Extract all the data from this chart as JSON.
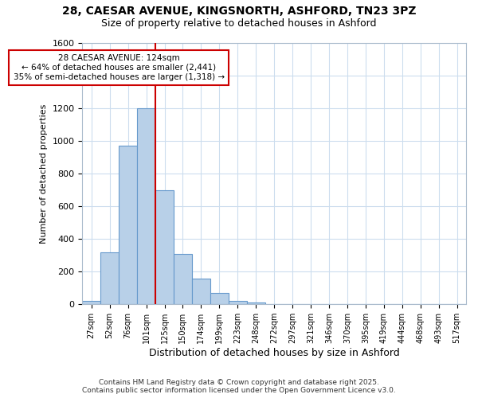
{
  "title_line1": "28, CAESAR AVENUE, KINGSNORTH, ASHFORD, TN23 3PZ",
  "title_line2": "Size of property relative to detached houses in Ashford",
  "xlabel": "Distribution of detached houses by size in Ashford",
  "ylabel": "Number of detached properties",
  "bar_labels": [
    "27sqm",
    "52sqm",
    "76sqm",
    "101sqm",
    "125sqm",
    "150sqm",
    "174sqm",
    "199sqm",
    "223sqm",
    "248sqm",
    "272sqm",
    "297sqm",
    "321sqm",
    "346sqm",
    "370sqm",
    "395sqm",
    "419sqm",
    "444sqm",
    "468sqm",
    "493sqm",
    "517sqm"
  ],
  "bar_values": [
    20,
    320,
    970,
    1200,
    700,
    310,
    155,
    70,
    20,
    10,
    2,
    0,
    0,
    0,
    0,
    0,
    0,
    0,
    0,
    0,
    0
  ],
  "bar_color": "#b8d0e8",
  "bar_edgecolor": "#6699cc",
  "annotation_text": "28 CAESAR AVENUE: 124sqm\n← 64% of detached houses are smaller (2,441)\n35% of semi-detached houses are larger (1,318) →",
  "annotation_box_edgecolor": "#cc0000",
  "annotation_box_facecolor": "#ffffff",
  "vline_color": "#cc0000",
  "vline_bin_index": 4,
  "ylim": [
    0,
    1600
  ],
  "yticks": [
    0,
    200,
    400,
    600,
    800,
    1000,
    1200,
    1400,
    1600
  ],
  "grid_color": "#ccddee",
  "background_color": "#ffffff",
  "plot_bg_color": "#ffffff",
  "footer_line1": "Contains HM Land Registry data © Crown copyright and database right 2025.",
  "footer_line2": "Contains public sector information licensed under the Open Government Licence v3.0."
}
